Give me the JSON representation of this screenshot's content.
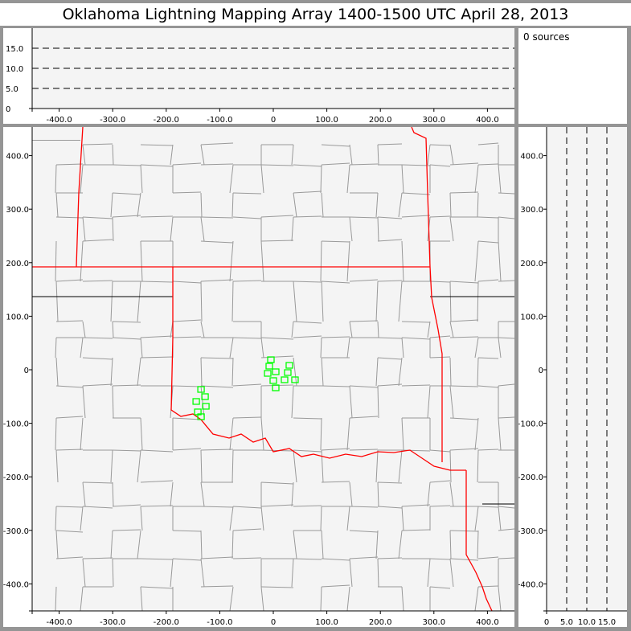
{
  "title": "Oklahoma Lightning Mapping Array   1400-1500 UTC  April 28, 2013",
  "info": {
    "sources_text": "0 sources"
  },
  "colors": {
    "station": "#00ff00",
    "state_border": "#ff0000",
    "county": "#999999",
    "plot_bg": "#f4f4f4",
    "frame": "#959595"
  },
  "chart_data": [
    {
      "name": "altitude-vs-x",
      "type": "scatter",
      "xlim": [
        -450,
        450
      ],
      "ylim": [
        0,
        20
      ],
      "xticks": [
        "-400.0",
        "-300.0",
        "-200.0",
        "-100.0",
        "0",
        "100.0",
        "200.0",
        "300.0",
        "400.0"
      ],
      "xtick_values": [
        -400,
        -300,
        -200,
        -100,
        0,
        100,
        200,
        300,
        400
      ],
      "yticks": [
        "0",
        "5.0",
        "10.0",
        "15.0"
      ],
      "ytick_values": [
        0,
        5,
        10,
        15
      ],
      "dashed_reference_lines": [
        5,
        10,
        15
      ],
      "points": []
    },
    {
      "name": "plan-view-map",
      "type": "scatter",
      "xlim": [
        -450,
        450
      ],
      "ylim": [
        -450,
        450
      ],
      "xticks": [
        "-400.0",
        "-300.0",
        "-200.0",
        "-100.0",
        "0",
        "100.0",
        "200.0",
        "300.0",
        "400.0"
      ],
      "xtick_values": [
        -400,
        -300,
        -200,
        -100,
        0,
        100,
        200,
        300,
        400
      ],
      "yticks": [
        "400.0",
        "300.0",
        "200.0",
        "100.0",
        "0",
        "-100.0",
        "-200.0",
        "-300.0",
        "-400.0"
      ],
      "ytick_values": [
        400,
        300,
        200,
        100,
        0,
        -100,
        -200,
        -300,
        -400
      ],
      "stations": [
        [
          -4.5,
          18
        ],
        [
          -7.5,
          6
        ],
        [
          -10.5,
          -7.5
        ],
        [
          4.5,
          -4.5
        ],
        [
          0,
          -21
        ],
        [
          4.5,
          -34.5
        ],
        [
          30,
          7.5
        ],
        [
          27,
          -6
        ],
        [
          21,
          -19.5
        ],
        [
          40.5,
          -19.5
        ],
        [
          -135,
          -37.5
        ],
        [
          -127.5,
          -51
        ],
        [
          -144,
          -60
        ],
        [
          -126,
          -69
        ],
        [
          -141,
          -79.5
        ],
        [
          -135,
          -88.5
        ]
      ]
    },
    {
      "name": "y-vs-altitude",
      "type": "scatter",
      "xlim": [
        0,
        20
      ],
      "ylim": [
        -450,
        450
      ],
      "xticks": [
        "0",
        "5.0",
        "10.0",
        "15.0"
      ],
      "xtick_values": [
        0,
        5,
        10,
        15
      ],
      "yticks": [
        "400.0",
        "300.0",
        "200.0",
        "100.0",
        "0",
        "-100.0",
        "-200.0",
        "-300.0",
        "-400.0"
      ],
      "ytick_values": [
        400,
        300,
        200,
        100,
        0,
        -100,
        -200,
        -300,
        -400
      ],
      "dashed_reference_lines": [
        5,
        10,
        15
      ],
      "points": []
    }
  ]
}
